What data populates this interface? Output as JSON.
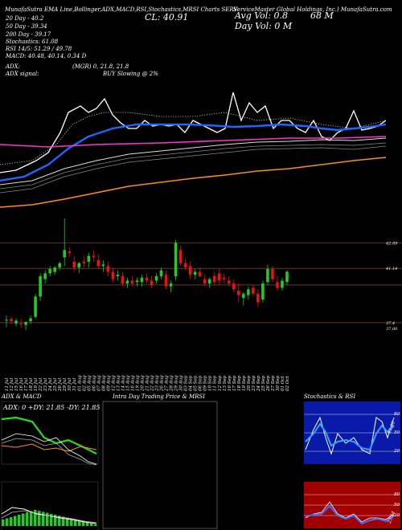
{
  "header": {
    "title_left": "MunafaSutra EMA Line,Bollinger,ADX,MACD,RSI,Stochastics,MRSI Charts SERV",
    "title_right": "ServiceMaster Global Holdings, Inc.) MunafaSutra.com",
    "cl_label": "CL: 40.91",
    "avg_vol": "Avg Vol: 0.8",
    "avg_vol_unit": "68  M",
    "day_vol": "Day Vol: 0   M",
    "ema20": "20 Day - 40.2",
    "ema50": "50 Day - 39.34",
    "ema200": "200 Day - 39.17",
    "stochastics": "Stochastics: 61.08",
    "rsi": "RSI 14/5: 51.29 / 49.78",
    "macd": "MACD: 40.48, 40.14, 0.34 D",
    "adx": "ADX:",
    "adx_values": "(MGR) 0, 21.8, 21.8",
    "adx_signal": "ADX signal:",
    "buy_signal": "BUY Slowing @ 2%"
  },
  "price_labels": [
    {
      "value": 42.89,
      "text": "42.89"
    },
    {
      "value": 41.14,
      "text": "41.14"
    },
    {
      "value": 37.4,
      "text": "37.4"
    },
    {
      "value": 37.0,
      "text": "37.00"
    }
  ],
  "dates": [
    "11 Jul",
    "12 Jul",
    "15 Jul",
    "16 Jul",
    "17 Jul",
    "18 Jul",
    "19 Jul",
    "22 Jul",
    "23 Jul",
    "24 Jul",
    "25 Jul",
    "26 Jul",
    "29 Jul",
    "30 Jul",
    "31 Jul",
    "01 Aug",
    "02 Aug",
    "05 Aug",
    "06 Aug",
    "07 Aug",
    "08 Aug",
    "09 Aug",
    "12 Aug",
    "13 Aug",
    "14 Aug",
    "15 Aug",
    "16 Aug",
    "19 Aug",
    "20 Aug",
    "21 Aug",
    "22 Aug",
    "23 Aug",
    "26 Aug",
    "27 Aug",
    "28 Aug",
    "29 Aug",
    "30 Aug",
    "03 Sep",
    "04 Sep",
    "05 Sep",
    "06 Sep",
    "09 Sep",
    "10 Sep",
    "11 Sep",
    "12 Sep",
    "13 Sep",
    "16 Sep",
    "17 Sep",
    "18 Sep",
    "19 Sep",
    "20 Sep",
    "23 Sep",
    "24 Sep",
    "25 Sep",
    "26 Sep",
    "27 Sep",
    "30 Sep",
    "01 Oct",
    "02 Oct"
  ],
  "panels": {
    "adx_title": "ADX  & MACD",
    "adx_readout": "ADX: 0  +DY: 21.85  -DY: 21.85",
    "intraday_title": "Intra  Day Trading Price  & MRSI",
    "stoch_title": "Stochastics & RSI",
    "stoch_levels": [
      "80",
      "50",
      "20"
    ],
    "mrsi_levels": [
      "80",
      "50",
      "20"
    ],
    "stoch_value": "61.08",
    "mrsi_value": "23.24"
  },
  "chart_data": {
    "type": "candlestick",
    "title": "SERV",
    "ylim": [
      36.4,
      44.8
    ],
    "candles": [
      {
        "o": 37.55,
        "h": 37.9,
        "l": 37.1,
        "c": 37.6
      },
      {
        "o": 37.65,
        "h": 37.8,
        "l": 37.3,
        "c": 37.5
      },
      {
        "o": 37.35,
        "h": 37.7,
        "l": 37.15,
        "c": 37.55
      },
      {
        "o": 37.35,
        "h": 37.65,
        "l": 37.05,
        "c": 37.3
      },
      {
        "o": 37.25,
        "h": 37.5,
        "l": 36.9,
        "c": 37.45
      },
      {
        "o": 37.5,
        "h": 37.9,
        "l": 37.3,
        "c": 37.7
      },
      {
        "o": 37.8,
        "h": 39.4,
        "l": 37.7,
        "c": 39.2
      },
      {
        "o": 39.2,
        "h": 40.8,
        "l": 38.9,
        "c": 40.6
      },
      {
        "o": 40.4,
        "h": 41.0,
        "l": 40.1,
        "c": 40.8
      },
      {
        "o": 40.8,
        "h": 41.3,
        "l": 40.6,
        "c": 41.1
      },
      {
        "o": 40.9,
        "h": 41.3,
        "l": 40.7,
        "c": 41.2
      },
      {
        "o": 41.2,
        "h": 41.6,
        "l": 41.0,
        "c": 41.5
      },
      {
        "o": 41.9,
        "h": 44.6,
        "l": 41.3,
        "c": 42.4
      },
      {
        "o": 42.3,
        "h": 42.6,
        "l": 41.9,
        "c": 42.2
      },
      {
        "o": 41.6,
        "h": 42.0,
        "l": 40.9,
        "c": 41.2
      },
      {
        "o": 41.2,
        "h": 41.6,
        "l": 40.8,
        "c": 41.5
      },
      {
        "o": 41.6,
        "h": 42.0,
        "l": 41.2,
        "c": 41.5
      },
      {
        "o": 41.6,
        "h": 42.2,
        "l": 41.2,
        "c": 42.0
      },
      {
        "o": 42.0,
        "h": 42.4,
        "l": 41.6,
        "c": 41.9
      },
      {
        "o": 41.7,
        "h": 42.1,
        "l": 41.1,
        "c": 41.3
      },
      {
        "o": 41.3,
        "h": 41.7,
        "l": 40.9,
        "c": 41.4
      },
      {
        "o": 41.3,
        "h": 41.6,
        "l": 40.6,
        "c": 40.9
      },
      {
        "o": 40.9,
        "h": 41.2,
        "l": 40.2,
        "c": 40.4
      },
      {
        "o": 40.6,
        "h": 41.0,
        "l": 40.3,
        "c": 40.7
      },
      {
        "o": 40.6,
        "h": 40.9,
        "l": 39.9,
        "c": 40.1
      },
      {
        "o": 40.1,
        "h": 40.5,
        "l": 39.8,
        "c": 40.3
      },
      {
        "o": 40.3,
        "h": 40.6,
        "l": 39.9,
        "c": 40.1
      },
      {
        "o": 40.2,
        "h": 40.5,
        "l": 39.9,
        "c": 40.3
      },
      {
        "o": 40.2,
        "h": 40.7,
        "l": 39.9,
        "c": 40.5
      },
      {
        "o": 40.5,
        "h": 40.8,
        "l": 40.1,
        "c": 40.3
      },
      {
        "o": 40.3,
        "h": 40.6,
        "l": 39.8,
        "c": 40.0
      },
      {
        "o": 40.3,
        "h": 40.8,
        "l": 40.1,
        "c": 40.6
      },
      {
        "o": 40.6,
        "h": 41.2,
        "l": 40.4,
        "c": 41.0
      },
      {
        "o": 40.7,
        "h": 41.0,
        "l": 39.7,
        "c": 39.9
      },
      {
        "o": 39.9,
        "h": 40.3,
        "l": 39.5,
        "c": 40.1
      },
      {
        "o": 40.6,
        "h": 43.1,
        "l": 40.3,
        "c": 42.9
      },
      {
        "o": 42.4,
        "h": 42.7,
        "l": 41.3,
        "c": 41.5
      },
      {
        "o": 41.5,
        "h": 41.8,
        "l": 41.0,
        "c": 41.2
      },
      {
        "o": 41.3,
        "h": 41.6,
        "l": 40.4,
        "c": 40.7
      },
      {
        "o": 40.7,
        "h": 41.1,
        "l": 40.4,
        "c": 40.9
      },
      {
        "o": 40.9,
        "h": 41.2,
        "l": 40.5,
        "c": 40.6
      },
      {
        "o": 40.4,
        "h": 40.7,
        "l": 39.9,
        "c": 40.1
      },
      {
        "o": 40.1,
        "h": 40.5,
        "l": 39.8,
        "c": 40.4
      },
      {
        "o": 40.6,
        "h": 40.9,
        "l": 40.0,
        "c": 40.2
      },
      {
        "o": 40.8,
        "h": 41.1,
        "l": 40.0,
        "c": 40.3
      },
      {
        "o": 40.5,
        "h": 40.8,
        "l": 40.1,
        "c": 40.4
      },
      {
        "o": 40.3,
        "h": 40.6,
        "l": 39.9,
        "c": 40.1
      },
      {
        "o": 40.1,
        "h": 40.4,
        "l": 39.5,
        "c": 39.7
      },
      {
        "o": 39.6,
        "h": 40.1,
        "l": 38.8,
        "c": 39.3
      },
      {
        "o": 39.1,
        "h": 39.5,
        "l": 38.6,
        "c": 39.4
      },
      {
        "o": 39.3,
        "h": 39.9,
        "l": 39.0,
        "c": 39.7
      },
      {
        "o": 39.8,
        "h": 40.0,
        "l": 39.2,
        "c": 39.4
      },
      {
        "o": 39.4,
        "h": 39.7,
        "l": 38.5,
        "c": 38.8
      },
      {
        "o": 39.0,
        "h": 40.3,
        "l": 38.8,
        "c": 40.1
      },
      {
        "o": 40.2,
        "h": 41.4,
        "l": 40.0,
        "c": 41.1
      },
      {
        "o": 41.1,
        "h": 41.3,
        "l": 40.2,
        "c": 40.4
      },
      {
        "o": 40.2,
        "h": 40.6,
        "l": 39.6,
        "c": 39.8
      },
      {
        "o": 39.8,
        "h": 40.5,
        "l": 39.6,
        "c": 40.3
      },
      {
        "o": 40.2,
        "h": 41.0,
        "l": 40.0,
        "c": 40.91
      }
    ]
  }
}
